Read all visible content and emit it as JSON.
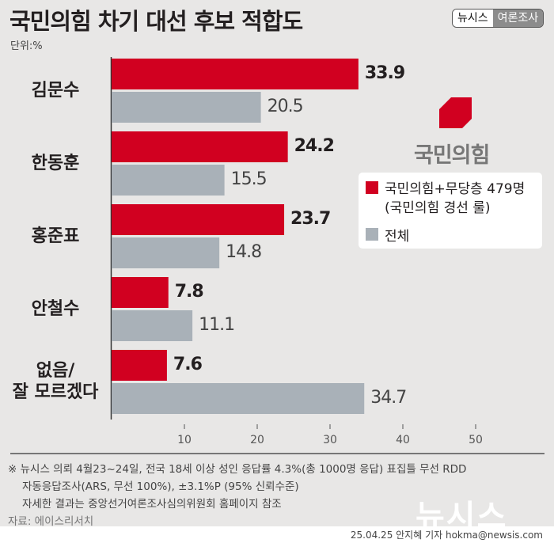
{
  "header": {
    "title": "국민의힘 차기 대선 후보 적합도",
    "unit": "단위:%",
    "badge_left": "뉴시스",
    "badge_right": "여론조사"
  },
  "logo": {
    "text": "국민의힘",
    "color": "#d10020"
  },
  "chart_data": {
    "type": "bar",
    "orientation": "horizontal",
    "categories": [
      "김문수",
      "한동훈",
      "홍준표",
      "안철수",
      "없음/\n잘 모르겠다"
    ],
    "series": [
      {
        "name": "국민의힘+무당층 479명\n(국민의힘 경선 룰)",
        "color": "#d10020",
        "values": [
          33.9,
          24.2,
          23.7,
          7.8,
          7.6
        ]
      },
      {
        "name": "전체",
        "color": "#a9b1b8",
        "values": [
          20.5,
          15.5,
          14.8,
          11.1,
          34.7
        ]
      }
    ],
    "xlim": [
      0,
      50
    ],
    "ticks": [
      "10",
      "20",
      "30",
      "40",
      "50"
    ],
    "legend": "right",
    "grid": false
  },
  "legend": {
    "line1": "국민의힘+무당층 479명",
    "line2": "(국민의힘 경선 룰)",
    "line3": "전체"
  },
  "footer": {
    "note1": "※ 뉴시스 의뢰 4월23~24일, 전국 18세 이상 성인 응답률 4.3%(총 1000명 응답) 표집틀 무선 RDD",
    "note2": "자동응답조사(ARS, 무선 100%), ±3.1%P (95% 신뢰수준)",
    "note3": "자세한 결과는 중앙선거여론조사심의위원회 홈페이지 참조",
    "source": "자료: 에이스리서치",
    "watermark": "뉴시스",
    "credit": "25.04.25 안지혜 기자 hokma@newsis.com"
  }
}
